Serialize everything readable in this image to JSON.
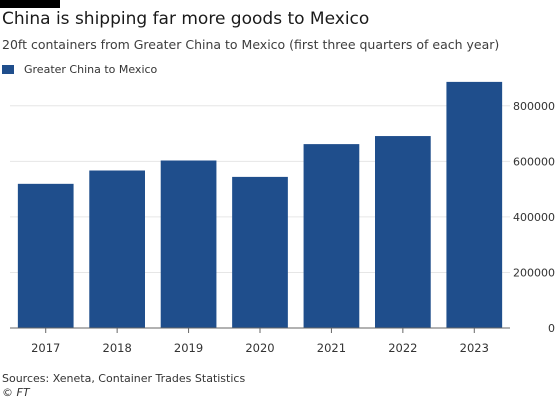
{
  "title": "China is shipping far more goods to Mexico",
  "subtitle": "20ft containers from Greater China to Mexico (first three quarters of each year)",
  "source": "Sources: Xeneta, Container Trades Statistics",
  "credit": "© FT",
  "colors": {
    "bar": "#1f4e8c",
    "grid": "#e6e6e6",
    "axis": "#666666",
    "rule": "#000000"
  },
  "chart_data": {
    "type": "bar",
    "title": "China is shipping far more goods to Mexico",
    "subtitle": "20ft containers from Greater China to Mexico (first three quarters of each year)",
    "xlabel": "",
    "ylabel": "",
    "categories": [
      "2017",
      "2018",
      "2019",
      "2020",
      "2021",
      "2022",
      "2023"
    ],
    "series": [
      {
        "name": "Greater China to Mexico",
        "values": [
          519000,
          567000,
          603000,
          544000,
          662000,
          691000,
          886000
        ]
      }
    ],
    "ylim": [
      0,
      900000
    ],
    "yticks": [
      0,
      200000,
      400000,
      600000,
      800000
    ],
    "ytick_labels": [
      "0",
      "200000",
      "400000",
      "600000",
      "800000"
    ],
    "y_axis_position": "right",
    "grid": true,
    "legend": "top-left"
  }
}
